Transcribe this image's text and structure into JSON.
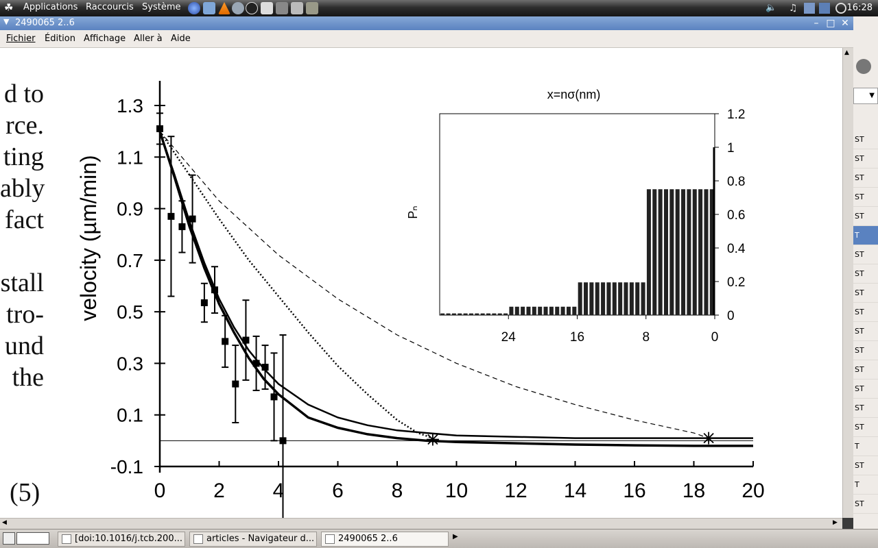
{
  "panel": {
    "menus": [
      "Applications",
      "Raccourcis",
      "Système"
    ],
    "clock": "16:28"
  },
  "window": {
    "title": "2490065 2..6",
    "menu": [
      "Fichier",
      "Édition",
      "Affichage",
      "Aller à",
      "Aide"
    ]
  },
  "document": {
    "left_text_lines": [
      "d to",
      "rce.",
      "ting",
      "ably",
      "fact",
      "",
      "stall",
      "tro-",
      "und",
      "the"
    ],
    "equation_number": "(5)"
  },
  "right_edge": {
    "labels": [
      "ST",
      "ST",
      "ST",
      "ST",
      "ST",
      "T",
      "ST",
      "ST",
      "ST",
      "ST",
      "ST",
      "ST",
      "ST",
      "ST",
      "ST",
      "ST",
      "T",
      "ST",
      "T",
      "ST"
    ]
  },
  "taskbar": {
    "tasks": [
      "[doi:10.1016/j.tcb.200...",
      "articles - Navigateur d...",
      "2490065 2..6"
    ]
  },
  "chart_data": [
    {
      "type": "scatter",
      "title": "",
      "xlabel": "",
      "ylabel": "velocity (µm/min)",
      "xlim": [
        0,
        20
      ],
      "ylim": [
        -0.1,
        1.3
      ],
      "x_ticks": [
        "0",
        "2",
        "4",
        "6",
        "8",
        "10",
        "12",
        "14",
        "16",
        "18",
        "20"
      ],
      "y_ticks": [
        "-0.1",
        "0.1",
        "0.3",
        "0.5",
        "0.7",
        "0.9",
        "1.1",
        "1.3"
      ],
      "points": [
        {
          "x": 0.0,
          "y": 1.21,
          "err": 0.06
        },
        {
          "x": 0.38,
          "y": 0.87,
          "err": 0.31
        },
        {
          "x": 0.75,
          "y": 0.83,
          "err": 0.1
        },
        {
          "x": 1.1,
          "y": 0.86,
          "err": 0.17
        },
        {
          "x": 1.5,
          "y": 0.535,
          "err": 0.075
        },
        {
          "x": 1.85,
          "y": 0.585,
          "err": 0.09
        },
        {
          "x": 2.2,
          "y": 0.385,
          "err": 0.1
        },
        {
          "x": 2.55,
          "y": 0.22,
          "err": 0.15
        },
        {
          "x": 2.9,
          "y": 0.39,
          "err": 0.155
        },
        {
          "x": 3.25,
          "y": 0.3,
          "err": 0.105
        },
        {
          "x": 3.55,
          "y": 0.285,
          "err": 0.085
        },
        {
          "x": 3.85,
          "y": 0.17,
          "err": 0.17
        },
        {
          "x": 4.15,
          "y": 0.0,
          "err": 0.41
        }
      ],
      "series": [
        {
          "style": "solid-thick",
          "x": [
            0,
            0.5,
            1,
            1.5,
            2,
            2.5,
            3,
            3.5,
            4,
            5,
            6,
            7,
            8,
            9,
            10,
            12,
            14,
            16,
            18,
            20
          ],
          "y": [
            1.2,
            1.02,
            0.83,
            0.67,
            0.53,
            0.42,
            0.32,
            0.24,
            0.18,
            0.09,
            0.05,
            0.025,
            0.01,
            0.0,
            -0.005,
            -0.01,
            -0.015,
            -0.018,
            -0.02,
            -0.02
          ]
        },
        {
          "style": "solid-medium",
          "x": [
            0,
            0.5,
            1,
            1.5,
            2,
            2.5,
            3,
            3.5,
            4,
            5,
            6,
            7,
            8,
            9,
            10,
            12,
            14,
            16,
            18,
            20
          ],
          "y": [
            1.2,
            1.03,
            0.85,
            0.69,
            0.55,
            0.44,
            0.35,
            0.28,
            0.22,
            0.14,
            0.09,
            0.06,
            0.04,
            0.03,
            0.02,
            0.015,
            0.01,
            0.01,
            0.01,
            0.01
          ]
        },
        {
          "style": "dotted",
          "x": [
            0,
            1,
            2,
            3,
            4,
            5,
            6,
            7,
            8,
            8.7,
            9.2
          ],
          "y": [
            1.2,
            1.03,
            0.86,
            0.7,
            0.56,
            0.42,
            0.29,
            0.18,
            0.08,
            0.03,
            0.01
          ]
        },
        {
          "style": "dashed",
          "x": [
            0,
            2,
            4,
            6,
            8,
            10,
            12,
            14,
            16,
            18,
            18.5
          ],
          "y": [
            1.2,
            0.93,
            0.72,
            0.55,
            0.41,
            0.3,
            0.21,
            0.14,
            0.08,
            0.03,
            0.01
          ]
        }
      ],
      "stall_markers": [
        {
          "x": 9.2,
          "y": 0.005
        },
        {
          "x": 18.5,
          "y": 0.01
        }
      ]
    },
    {
      "type": "bar",
      "title": "x=nσ(nm)",
      "ylabel": "Pₙ",
      "x_ticks": [
        "24",
        "16",
        "8",
        "0"
      ],
      "y_ticks": [
        "0",
        "0.2",
        "0.4",
        "0.6",
        "0.8",
        "1",
        "1.2"
      ],
      "xlim": [
        32,
        0
      ],
      "ylim": [
        0,
        1.2
      ],
      "groups": [
        {
          "from": 32,
          "to": 24,
          "value": 0.01
        },
        {
          "from": 24,
          "to": 16,
          "value": 0.05
        },
        {
          "from": 16,
          "to": 8,
          "value": 0.195
        },
        {
          "from": 8,
          "to": 0,
          "value": 0.75
        }
      ],
      "bars_per_group": 12
    }
  ]
}
